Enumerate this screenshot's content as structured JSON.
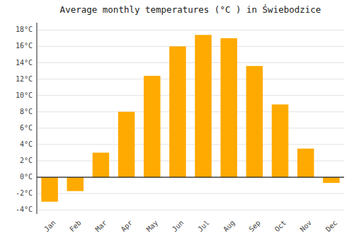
{
  "chart_data": {
    "type": "bar",
    "title": "Average monthly temperatures (°C ) in Świebodzice",
    "categories": [
      "Jan",
      "Feb",
      "Mar",
      "Apr",
      "May",
      "Jun",
      "Jul",
      "Aug",
      "Sep",
      "Oct",
      "Nov",
      "Dec"
    ],
    "values": [
      -3.0,
      -1.7,
      3.0,
      8.0,
      12.4,
      16.0,
      17.4,
      17.0,
      13.6,
      8.9,
      3.5,
      -0.7
    ],
    "color": "#FFAA00",
    "ylim": [
      -4.5,
      18.9
    ],
    "yticks": [
      {
        "value": -4,
        "label": "-4°C"
      },
      {
        "value": -2,
        "label": "-2°C"
      },
      {
        "value": 0,
        "label": "0°C"
      },
      {
        "value": 2,
        "label": "2°C"
      },
      {
        "value": 4,
        "label": "4°C"
      },
      {
        "value": 6,
        "label": "6°C"
      },
      {
        "value": 8,
        "label": "8°C"
      },
      {
        "value": 10,
        "label": "10°C"
      },
      {
        "value": 12,
        "label": "12°C"
      },
      {
        "value": 14,
        "label": "14°C"
      },
      {
        "value": 16,
        "label": "16°C"
      },
      {
        "value": 18,
        "label": "18°C"
      }
    ],
    "grid": true
  }
}
